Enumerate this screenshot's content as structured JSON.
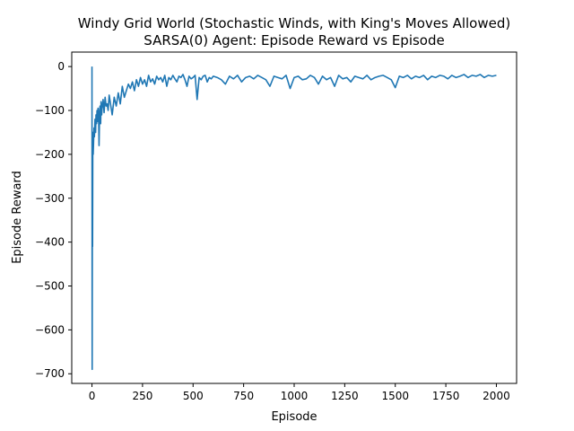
{
  "chart_data": {
    "type": "line",
    "title_line1": "Windy Grid World (Stochastic Winds, with King's Moves Allowed)",
    "title_line2": "SARSA(0) Agent: Episode Reward vs Episode",
    "xlabel": "Episode",
    "ylabel": "Episode Reward",
    "xlim": [
      -100,
      2100
    ],
    "ylim": [
      -722,
      33
    ],
    "x_ticks": [
      0,
      250,
      500,
      750,
      1000,
      1250,
      1500,
      1750,
      2000
    ],
    "x_tick_labels": [
      "0",
      "250",
      "500",
      "750",
      "1000",
      "1250",
      "1500",
      "1750",
      "2000"
    ],
    "y_ticks": [
      0,
      -100,
      -200,
      -300,
      -400,
      -500,
      -600,
      -700
    ],
    "y_tick_labels": [
      "0",
      "−100",
      "−200",
      "−300",
      "−400",
      "−500",
      "−600",
      "−700"
    ],
    "grid": false,
    "series_color": "#1f77b4",
    "series": [
      {
        "x": [
          0,
          1,
          2,
          3,
          4,
          5,
          6,
          8,
          10,
          12,
          15,
          18,
          20,
          23,
          25,
          28,
          30,
          33,
          35,
          38,
          40,
          43,
          45,
          48,
          50,
          55,
          60,
          65,
          70,
          75,
          80,
          85,
          90,
          95,
          100,
          110,
          120,
          130,
          140,
          150,
          160,
          170,
          180,
          190,
          200,
          210,
          220,
          230,
          240,
          250,
          260,
          270,
          280,
          290,
          300,
          310,
          320,
          330,
          340,
          350,
          360,
          370,
          380,
          390,
          400,
          410,
          420,
          430,
          440,
          450,
          460,
          470,
          480,
          490,
          500,
          510,
          520,
          530,
          540,
          550,
          560,
          570,
          580,
          590,
          600,
          620,
          640,
          660,
          680,
          700,
          720,
          740,
          760,
          780,
          800,
          820,
          840,
          860,
          880,
          900,
          920,
          940,
          960,
          980,
          1000,
          1020,
          1040,
          1060,
          1080,
          1100,
          1120,
          1140,
          1160,
          1180,
          1200,
          1220,
          1240,
          1260,
          1280,
          1300,
          1320,
          1340,
          1360,
          1380,
          1400,
          1420,
          1440,
          1460,
          1480,
          1500,
          1520,
          1540,
          1560,
          1580,
          1600,
          1620,
          1640,
          1660,
          1680,
          1700,
          1720,
          1740,
          1760,
          1780,
          1800,
          1820,
          1840,
          1860,
          1880,
          1900,
          1920,
          1940,
          1960,
          1980,
          2000
        ],
        "y": [
          0,
          -690,
          -300,
          -410,
          -190,
          -150,
          -200,
          -170,
          -140,
          -160,
          -120,
          -150,
          -110,
          -130,
          -100,
          -125,
          -95,
          -120,
          -180,
          -100,
          -90,
          -130,
          -80,
          -110,
          -95,
          -75,
          -105,
          -70,
          -90,
          -85,
          -100,
          -65,
          -80,
          -95,
          -110,
          -70,
          -90,
          -60,
          -85,
          -45,
          -70,
          -55,
          -40,
          -50,
          -35,
          -55,
          -30,
          -45,
          -25,
          -40,
          -30,
          -45,
          -20,
          -35,
          -28,
          -40,
          -22,
          -30,
          -25,
          -35,
          -20,
          -45,
          -25,
          -30,
          -20,
          -28,
          -35,
          -22,
          -25,
          -18,
          -30,
          -45,
          -22,
          -28,
          -25,
          -20,
          -75,
          -25,
          -30,
          -22,
          -20,
          -35,
          -25,
          -28,
          -22,
          -25,
          -30,
          -40,
          -22,
          -28,
          -20,
          -35,
          -25,
          -22,
          -28,
          -20,
          -25,
          -30,
          -45,
          -22,
          -25,
          -28,
          -20,
          -50,
          -25,
          -22,
          -30,
          -28,
          -20,
          -25,
          -40,
          -22,
          -30,
          -25,
          -45,
          -20,
          -28,
          -25,
          -35,
          -22,
          -25,
          -28,
          -20,
          -30,
          -25,
          -22,
          -20,
          -25,
          -30,
          -48,
          -22,
          -25,
          -20,
          -28,
          -22,
          -25,
          -20,
          -30,
          -22,
          -25,
          -20,
          -22,
          -28,
          -20,
          -25,
          -22,
          -18,
          -25,
          -20,
          -22,
          -18,
          -25,
          -20,
          -22,
          -20
        ]
      }
    ]
  }
}
